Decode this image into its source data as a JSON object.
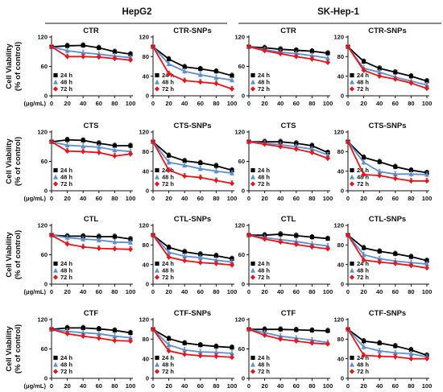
{
  "headers": {
    "left": "HepG2",
    "right": "SK-Hep-1"
  },
  "y_axis_label_line1": "Cell Viability",
  "y_axis_label_line2": "(% of control)",
  "x_unit_label": "(μg/mL)",
  "colors": {
    "24h": "#000000",
    "48h": "#5b8fd0",
    "72h": "#e8141a"
  },
  "chart_data": [
    {
      "type": "line",
      "title": "CTR",
      "cell_line": "HepG2",
      "xlabel": "(μg/mL)",
      "ylabel": "Cell Viability (% of control)",
      "x": [
        0,
        20,
        40,
        60,
        80,
        100
      ],
      "ylim": [
        0,
        120
      ],
      "yticks": [
        0,
        60,
        120
      ],
      "series": [
        {
          "name": "24 h",
          "values": [
            100,
            102,
            103,
            98,
            90,
            85
          ]
        },
        {
          "name": "48 h",
          "values": [
            100,
            92,
            88,
            85,
            81,
            78
          ]
        },
        {
          "name": "72 h",
          "values": [
            100,
            80,
            80,
            79,
            76,
            73
          ]
        }
      ]
    },
    {
      "type": "line",
      "title": "CTR-SNPs",
      "cell_line": "HepG2",
      "xlabel": "(μg/mL)",
      "ylabel": "Cell Viability (% of control)",
      "x": [
        0,
        20,
        40,
        60,
        80,
        100
      ],
      "ylim": [
        0,
        120
      ],
      "yticks": [
        0,
        40,
        80,
        120
      ],
      "series": [
        {
          "name": "24 h",
          "values": [
            100,
            75,
            59,
            55,
            50,
            41
          ]
        },
        {
          "name": "48 h",
          "values": [
            100,
            65,
            50,
            43,
            37,
            32
          ]
        },
        {
          "name": "72 h",
          "values": [
            100,
            45,
            31,
            28,
            25,
            14
          ]
        }
      ]
    },
    {
      "type": "line",
      "title": "CTR",
      "cell_line": "SK-Hep-1",
      "xlabel": "(μg/mL)",
      "ylabel": "Cell Viability (% of control)",
      "x": [
        0,
        20,
        40,
        60,
        80,
        100
      ],
      "ylim": [
        0,
        120
      ],
      "yticks": [
        0,
        60,
        120
      ],
      "series": [
        {
          "name": "24 h",
          "values": [
            100,
            98,
            95,
            93,
            91,
            87
          ]
        },
        {
          "name": "48 h",
          "values": [
            100,
            94,
            89,
            86,
            82,
            77
          ]
        },
        {
          "name": "72 h",
          "values": [
            100,
            92,
            86,
            80,
            75,
            68
          ]
        }
      ]
    },
    {
      "type": "line",
      "title": "CTR-SNPs",
      "cell_line": "SK-Hep-1",
      "xlabel": "(μg/mL)",
      "ylabel": "Cell Viability (% of control)",
      "x": [
        0,
        20,
        40,
        60,
        80,
        100
      ],
      "ylim": [
        0,
        120
      ],
      "yticks": [
        0,
        40,
        80,
        120
      ],
      "series": [
        {
          "name": "24 h",
          "values": [
            100,
            70,
            56,
            48,
            40,
            30
          ]
        },
        {
          "name": "48 h",
          "values": [
            100,
            56,
            48,
            38,
            30,
            22
          ]
        },
        {
          "name": "72 h",
          "values": [
            100,
            52,
            40,
            34,
            26,
            15
          ]
        }
      ]
    },
    {
      "type": "line",
      "title": "CTS",
      "cell_line": "HepG2",
      "xlabel": "(μg/mL)",
      "ylabel": "Cell Viability (% of control)",
      "x": [
        0,
        20,
        40,
        60,
        80,
        100
      ],
      "ylim": [
        0,
        120
      ],
      "yticks": [
        0,
        60,
        120
      ],
      "series": [
        {
          "name": "24 h",
          "values": [
            100,
            104,
            103,
            97,
            92,
            92
          ]
        },
        {
          "name": "48 h",
          "values": [
            100,
            93,
            91,
            89,
            83,
            80
          ]
        },
        {
          "name": "72 h",
          "values": [
            100,
            81,
            80,
            78,
            71,
            75
          ]
        }
      ]
    },
    {
      "type": "line",
      "title": "CTS-SNPs",
      "cell_line": "HepG2",
      "xlabel": "(μg/mL)",
      "ylabel": "Cell Viability (% of control)",
      "x": [
        0,
        20,
        40,
        60,
        80,
        100
      ],
      "ylim": [
        0,
        120
      ],
      "yticks": [
        0,
        40,
        80,
        120
      ],
      "series": [
        {
          "name": "24 h",
          "values": [
            100,
            72,
            61,
            57,
            51,
            42
          ]
        },
        {
          "name": "48 h",
          "values": [
            100,
            58,
            52,
            45,
            40,
            36
          ]
        },
        {
          "name": "72 h",
          "values": [
            100,
            42,
            30,
            27,
            21,
            15
          ]
        }
      ]
    },
    {
      "type": "line",
      "title": "CTS",
      "cell_line": "SK-Hep-1",
      "xlabel": "(μg/mL)",
      "ylabel": "Cell Viability (% of control)",
      "x": [
        0,
        20,
        40,
        60,
        80,
        100
      ],
      "ylim": [
        0,
        120
      ],
      "yticks": [
        0,
        60,
        120
      ],
      "series": [
        {
          "name": "24 h",
          "values": [
            100,
            100,
            100,
            97,
            92,
            78
          ]
        },
        {
          "name": "48 h",
          "values": [
            100,
            97,
            94,
            90,
            85,
            73
          ]
        },
        {
          "name": "72 h",
          "values": [
            100,
            95,
            90,
            85,
            78,
            66
          ]
        }
      ]
    },
    {
      "type": "line",
      "title": "CTS-SNPs",
      "cell_line": "SK-Hep-1",
      "xlabel": "(μg/mL)",
      "ylabel": "Cell Viability (% of control)",
      "x": [
        0,
        20,
        40,
        60,
        80,
        100
      ],
      "ylim": [
        0,
        120
      ],
      "yticks": [
        0,
        40,
        80,
        120
      ],
      "series": [
        {
          "name": "24 h",
          "values": [
            100,
            68,
            59,
            49,
            42,
            37
          ]
        },
        {
          "name": "48 h",
          "values": [
            100,
            58,
            39,
            34,
            34,
            33
          ]
        },
        {
          "name": "72 h",
          "values": [
            100,
            33,
            31,
            25,
            20,
            20
          ]
        }
      ]
    },
    {
      "type": "line",
      "title": "CTL",
      "cell_line": "HepG2",
      "xlabel": "(μg/mL)",
      "ylabel": "Cell Viability (% of control)",
      "x": [
        0,
        20,
        40,
        60,
        80,
        100
      ],
      "ylim": [
        0,
        120
      ],
      "yticks": [
        0,
        60,
        120
      ],
      "series": [
        {
          "name": "24 h",
          "values": [
            100,
            98,
            98,
            97,
            97,
            92
          ]
        },
        {
          "name": "48 h",
          "values": [
            100,
            95,
            92,
            90,
            86,
            85
          ]
        },
        {
          "name": "72 h",
          "values": [
            100,
            82,
            76,
            73,
            72,
            71
          ]
        }
      ]
    },
    {
      "type": "line",
      "title": "CTL-SNPs",
      "cell_line": "HepG2",
      "xlabel": "(μg/mL)",
      "ylabel": "Cell Viability (% of control)",
      "x": [
        0,
        20,
        40,
        60,
        80,
        100
      ],
      "ylim": [
        0,
        120
      ],
      "yticks": [
        0,
        40,
        80,
        120
      ],
      "series": [
        {
          "name": "24 h",
          "values": [
            100,
            75,
            66,
            61,
            58,
            52
          ]
        },
        {
          "name": "48 h",
          "values": [
            100,
            65,
            57,
            54,
            49,
            45
          ]
        },
        {
          "name": "72 h",
          "values": [
            100,
            55,
            48,
            44,
            42,
            39
          ]
        }
      ]
    },
    {
      "type": "line",
      "title": "CTL",
      "cell_line": "SK-Hep-1",
      "xlabel": "(μg/mL)",
      "ylabel": "Cell Viability (% of control)",
      "x": [
        0,
        20,
        40,
        60,
        80,
        100
      ],
      "ylim": [
        0,
        120
      ],
      "yticks": [
        0,
        60,
        120
      ],
      "series": [
        {
          "name": "24 h",
          "values": [
            100,
            100,
            102,
            99,
            96,
            93
          ]
        },
        {
          "name": "48 h",
          "values": [
            100,
            95,
            91,
            87,
            82,
            78
          ]
        },
        {
          "name": "72 h",
          "values": [
            100,
            92,
            86,
            81,
            76,
            72
          ]
        }
      ]
    },
    {
      "type": "line",
      "title": "CTL-SNPs",
      "cell_line": "SK-Hep-1",
      "xlabel": "(μg/mL)",
      "ylabel": "Cell Viability (% of control)",
      "x": [
        0,
        20,
        40,
        60,
        80,
        100
      ],
      "ylim": [
        0,
        120
      ],
      "yticks": [
        0,
        40,
        80,
        120
      ],
      "series": [
        {
          "name": "24 h",
          "values": [
            100,
            74,
            67,
            62,
            56,
            48
          ]
        },
        {
          "name": "48 h",
          "values": [
            100,
            60,
            52,
            47,
            44,
            41
          ]
        },
        {
          "name": "72 h",
          "values": [
            100,
            49,
            45,
            42,
            38,
            33
          ]
        }
      ]
    },
    {
      "type": "line",
      "title": "CTF",
      "cell_line": "HepG2",
      "xlabel": "(μg/mL)",
      "ylabel": "Cell Viability (% of control)",
      "x": [
        0,
        20,
        40,
        60,
        80,
        100
      ],
      "ylim": [
        0,
        120
      ],
      "yticks": [
        0,
        60,
        120
      ],
      "series": [
        {
          "name": "24 h",
          "values": [
            100,
            103,
            103,
            101,
            98,
            93
          ]
        },
        {
          "name": "48 h",
          "values": [
            100,
            96,
            93,
            91,
            86,
            83
          ]
        },
        {
          "name": "72 h",
          "values": [
            100,
            91,
            86,
            82,
            77,
            76
          ]
        }
      ]
    },
    {
      "type": "line",
      "title": "CTF-SNPs",
      "cell_line": "HepG2",
      "xlabel": "(μg/mL)",
      "ylabel": "Cell Viability (% of control)",
      "x": [
        0,
        20,
        40,
        60,
        80,
        100
      ],
      "ylim": [
        0,
        120
      ],
      "yticks": [
        0,
        40,
        80,
        120
      ],
      "series": [
        {
          "name": "24 h",
          "values": [
            100,
            81,
            72,
            68,
            65,
            63
          ]
        },
        {
          "name": "48 h",
          "values": [
            100,
            68,
            58,
            54,
            53,
            51
          ]
        },
        {
          "name": "72 h",
          "values": [
            100,
            56,
            49,
            46,
            45,
            43
          ]
        }
      ]
    },
    {
      "type": "line",
      "title": "CTF",
      "cell_line": "SK-Hep-1",
      "xlabel": "(μg/mL)",
      "ylabel": "Cell Viability (% of control)",
      "x": [
        0,
        20,
        40,
        60,
        80,
        100
      ],
      "ylim": [
        0,
        120
      ],
      "yticks": [
        0,
        60,
        120
      ],
      "series": [
        {
          "name": "24 h",
          "values": [
            100,
            100,
            100,
            99,
            98,
            97
          ]
        },
        {
          "name": "48 h",
          "values": [
            100,
            93,
            86,
            82,
            78,
            73
          ]
        },
        {
          "name": "72 h",
          "values": [
            100,
            88,
            80,
            76,
            72,
            70
          ]
        }
      ]
    },
    {
      "type": "line",
      "title": "CTF-SNPs",
      "cell_line": "SK-Hep-1",
      "xlabel": "(μg/mL)",
      "ylabel": "Cell Viability (% of control)",
      "x": [
        0,
        20,
        40,
        60,
        80,
        100
      ],
      "ylim": [
        0,
        120
      ],
      "yticks": [
        0,
        40,
        80,
        120
      ],
      "series": [
        {
          "name": "24 h",
          "values": [
            100,
            76,
            72,
            66,
            58,
            47
          ]
        },
        {
          "name": "48 h",
          "values": [
            100,
            64,
            56,
            52,
            50,
            44
          ]
        },
        {
          "name": "72 h",
          "values": [
            100,
            47,
            45,
            44,
            40,
            40
          ]
        }
      ]
    }
  ]
}
